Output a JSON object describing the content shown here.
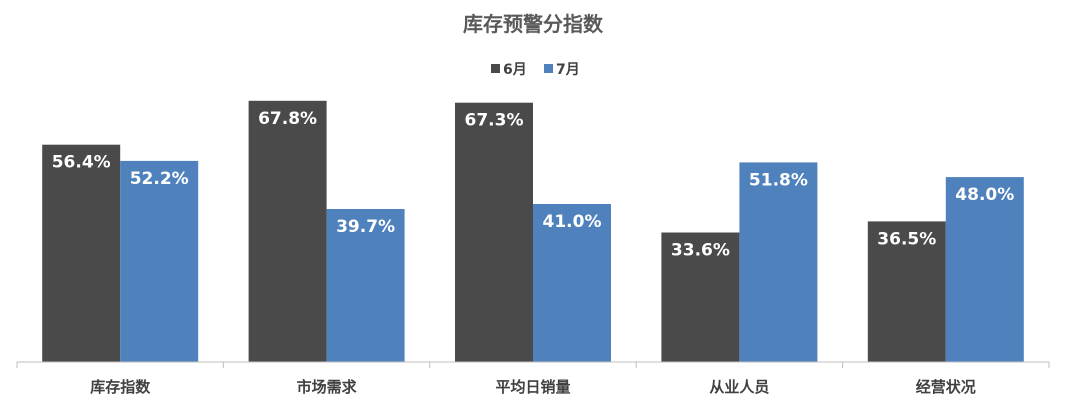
{
  "chart_data": {
    "type": "bar",
    "title": "库存预警分指数",
    "categories": [
      "库存指数",
      "市场需求",
      "平均日销量",
      "从业人员",
      "经营状况"
    ],
    "series": [
      {
        "name": "6月",
        "color": "#4a4a4a",
        "values": [
          56.4,
          67.8,
          67.3,
          33.6,
          36.5
        ],
        "labels": [
          "56.4%",
          "67.8%",
          "67.3%",
          "33.6%",
          "36.5%"
        ]
      },
      {
        "name": "7月",
        "color": "#4f81bd",
        "values": [
          52.2,
          39.7,
          41.0,
          51.8,
          48.0
        ],
        "labels": [
          "52.2%",
          "39.7%",
          "41.0%",
          "51.8%",
          "48.0%"
        ]
      }
    ],
    "xlabel": "",
    "ylabel": "",
    "ylim": [
      0,
      68
    ],
    "grid": false,
    "legend_position": "top-center"
  }
}
